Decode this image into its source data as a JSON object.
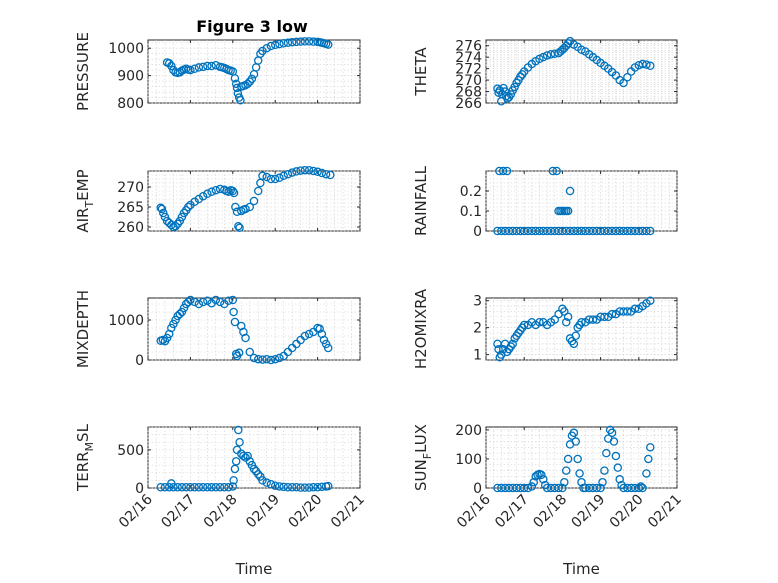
{
  "figure": {
    "title": "Figure 3 low",
    "marker_color": "#0072BD"
  },
  "chart_data": [
    {
      "id": "pressure",
      "type": "scatter",
      "title": "Figure 3 low",
      "ylabel": "PRESSURE",
      "ylabel_sub": "",
      "ylabel_tail": "",
      "xlabel": "",
      "xlim": [
        16,
        21
      ],
      "ylim": [
        800,
        1030
      ],
      "yticks": [
        800,
        900,
        1000
      ],
      "ytick_labels": [
        "800",
        "900",
        "1000"
      ],
      "xticks": [
        16,
        17,
        18,
        19,
        20,
        21
      ],
      "xtick_labels": [
        "",
        "",
        "",
        "",
        "",
        ""
      ],
      "x": [
        16.45,
        16.5,
        16.55,
        16.6,
        16.65,
        16.7,
        16.75,
        16.8,
        16.85,
        16.9,
        16.95,
        17.0,
        17.1,
        17.2,
        17.3,
        17.4,
        17.5,
        17.6,
        17.7,
        17.75,
        17.8,
        17.85,
        17.9,
        17.95,
        18.0,
        18.05,
        18.08,
        18.1,
        18.12,
        18.15,
        18.18,
        18.2,
        18.25,
        18.3,
        18.35,
        18.4,
        18.45,
        18.5,
        18.55,
        18.6,
        18.65,
        18.7,
        18.8,
        18.9,
        19.0,
        19.1,
        19.2,
        19.3,
        19.4,
        19.5,
        19.6,
        19.7,
        19.8,
        19.9,
        20.0,
        20.05,
        20.1,
        20.15,
        20.2,
        20.25
      ],
      "y": [
        948,
        945,
        935,
        920,
        912,
        910,
        912,
        918,
        922,
        925,
        922,
        920,
        925,
        930,
        932,
        935,
        935,
        938,
        932,
        930,
        928,
        924,
        920,
        918,
        915,
        890,
        870,
        855,
        835,
        820,
        810,
        860,
        862,
        865,
        870,
        878,
        888,
        905,
        930,
        955,
        980,
        990,
        1000,
        1008,
        1012,
        1015,
        1018,
        1020,
        1022,
        1023,
        1024,
        1025,
        1025,
        1024,
        1023,
        1022,
        1020,
        1018,
        1016,
        1013
      ]
    },
    {
      "id": "theta",
      "type": "scatter",
      "title": "",
      "ylabel": "THETA",
      "ylabel_sub": "",
      "ylabel_tail": "",
      "xlabel": "",
      "xlim": [
        16,
        21
      ],
      "ylim": [
        266,
        277
      ],
      "yticks": [
        266,
        268,
        270,
        272,
        274,
        276
      ],
      "ytick_labels": [
        "266",
        "268",
        "270",
        "272",
        "274",
        "276"
      ],
      "xticks": [
        16,
        17,
        18,
        19,
        20,
        21
      ],
      "xtick_labels": [
        "",
        "",
        "",
        "",
        "",
        ""
      ],
      "x": [
        16.3,
        16.33,
        16.36,
        16.4,
        16.43,
        16.46,
        16.5,
        16.53,
        16.56,
        16.6,
        16.65,
        16.7,
        16.75,
        16.8,
        16.85,
        16.9,
        16.95,
        17.0,
        17.1,
        17.2,
        17.3,
        17.4,
        17.5,
        17.6,
        17.7,
        17.8,
        17.9,
        17.95,
        18.0,
        18.05,
        18.1,
        18.15,
        18.2,
        18.3,
        18.4,
        18.5,
        18.6,
        18.7,
        18.8,
        18.9,
        19.0,
        19.1,
        19.2,
        19.3,
        19.4,
        19.5,
        19.6,
        19.7,
        19.8,
        19.9,
        20.0,
        20.1,
        20.2,
        20.3
      ],
      "y": [
        268.5,
        267.8,
        268.2,
        266.3,
        267.5,
        268.6,
        268.0,
        267.2,
        266.8,
        267.0,
        267.5,
        268.2,
        268.8,
        269.5,
        270.0,
        270.6,
        271.0,
        271.5,
        272.2,
        272.8,
        273.3,
        273.7,
        274.0,
        274.3,
        274.5,
        274.6,
        274.7,
        275.0,
        275.3,
        275.6,
        276.0,
        276.4,
        276.8,
        276.2,
        275.8,
        275.3,
        275.0,
        274.5,
        274.0,
        273.5,
        273.0,
        272.5,
        272.0,
        271.4,
        270.8,
        270.0,
        269.5,
        270.5,
        271.5,
        272.2,
        272.6,
        272.8,
        272.7,
        272.5
      ]
    },
    {
      "id": "air_temp",
      "type": "scatter",
      "title": "",
      "ylabel": "AIR",
      "ylabel_sub": "T",
      "ylabel_tail": "EMP",
      "xlabel": "",
      "xlim": [
        16,
        21
      ],
      "ylim": [
        259,
        274
      ],
      "yticks": [
        260,
        265,
        270
      ],
      "ytick_labels": [
        "260",
        "265",
        "270"
      ],
      "xticks": [
        16,
        17,
        18,
        19,
        20,
        21
      ],
      "xtick_labels": [
        "",
        "",
        "",
        "",
        "",
        ""
      ],
      "x": [
        16.3,
        16.33,
        16.36,
        16.4,
        16.45,
        16.5,
        16.55,
        16.6,
        16.65,
        16.7,
        16.75,
        16.8,
        16.85,
        16.9,
        16.95,
        17.0,
        17.1,
        17.2,
        17.3,
        17.4,
        17.5,
        17.6,
        17.7,
        17.8,
        17.85,
        17.9,
        17.95,
        18.0,
        18.03,
        18.06,
        18.1,
        18.13,
        18.16,
        18.2,
        18.25,
        18.3,
        18.4,
        18.5,
        18.6,
        18.65,
        18.7,
        18.8,
        18.9,
        19.0,
        19.1,
        19.2,
        19.3,
        19.4,
        19.5,
        19.6,
        19.7,
        19.8,
        19.9,
        20.0,
        20.1,
        20.2,
        20.3
      ],
      "y": [
        264.8,
        264.5,
        263.5,
        262.5,
        261.5,
        261.0,
        260.5,
        260.0,
        260.2,
        260.8,
        261.5,
        262.5,
        263.5,
        264.2,
        265.0,
        265.5,
        266.3,
        267.0,
        267.7,
        268.3,
        268.8,
        269.2,
        269.5,
        269.3,
        269.0,
        268.8,
        269.2,
        269.0,
        268.5,
        265.0,
        263.8,
        260.2,
        259.8,
        264.0,
        264.3,
        264.5,
        265.0,
        266.5,
        269.0,
        271.0,
        272.8,
        272.5,
        272.0,
        272.0,
        272.3,
        272.8,
        273.2,
        273.6,
        273.9,
        274.1,
        274.2,
        274.2,
        274.0,
        273.8,
        273.5,
        273.2,
        273.0
      ]
    },
    {
      "id": "rainfall",
      "type": "scatter",
      "title": "",
      "ylabel": "RAINFALL",
      "ylabel_sub": "",
      "ylabel_tail": "",
      "xlabel": "",
      "xlim": [
        16,
        21
      ],
      "ylim": [
        0,
        0.3
      ],
      "yticks": [
        0,
        0.1,
        0.2
      ],
      "ytick_labels": [
        "0",
        "0.1",
        "0.2"
      ],
      "xticks": [
        16,
        17,
        18,
        19,
        20,
        21
      ],
      "xtick_labels": [
        "",
        "",
        "",
        "",
        "",
        ""
      ],
      "x": [
        16.3,
        16.4,
        16.5,
        16.6,
        16.7,
        16.8,
        16.9,
        17.0,
        17.1,
        17.2,
        17.3,
        17.4,
        17.5,
        17.6,
        17.7,
        17.8,
        17.9,
        18.0,
        18.1,
        18.2,
        18.3,
        18.4,
        18.5,
        18.6,
        18.7,
        18.8,
        18.9,
        19.0,
        19.1,
        19.2,
        19.3,
        19.4,
        19.5,
        19.6,
        19.7,
        19.8,
        19.9,
        20.0,
        20.1,
        20.2,
        20.3,
        16.35,
        16.45,
        16.55,
        17.85,
        17.9,
        17.95,
        18.0,
        18.05,
        18.1,
        18.2,
        17.75,
        18.15
      ],
      "y": [
        0,
        0,
        0,
        0,
        0,
        0,
        0,
        0,
        0,
        0,
        0,
        0,
        0,
        0,
        0,
        0,
        0,
        0,
        0,
        0,
        0,
        0,
        0,
        0,
        0,
        0,
        0,
        0,
        0,
        0,
        0,
        0,
        0,
        0,
        0,
        0,
        0,
        0,
        0,
        0,
        0,
        0.3,
        0.3,
        0.3,
        0.3,
        0.1,
        0.1,
        0.1,
        0.1,
        0.1,
        0.2,
        0.3,
        0.1
      ]
    },
    {
      "id": "mixdepth",
      "type": "scatter",
      "title": "",
      "ylabel": "MIXDEPTH",
      "ylabel_sub": "",
      "ylabel_tail": "",
      "xlabel": "",
      "xlim": [
        16,
        21
      ],
      "ylim": [
        0,
        1550
      ],
      "yticks": [
        0,
        1000
      ],
      "ytick_labels": [
        "0",
        "1000"
      ],
      "xticks": [
        16,
        17,
        18,
        19,
        20,
        21
      ],
      "xtick_labels": [
        "",
        "",
        "",
        "",
        "",
        ""
      ],
      "x": [
        16.3,
        16.35,
        16.4,
        16.45,
        16.5,
        16.55,
        16.6,
        16.65,
        16.7,
        16.75,
        16.8,
        16.85,
        16.9,
        16.95,
        17.0,
        17.1,
        17.2,
        17.3,
        17.4,
        17.5,
        17.6,
        17.7,
        17.8,
        17.9,
        18.0,
        18.02,
        18.05,
        18.08,
        18.1,
        18.15,
        18.2,
        18.25,
        18.3,
        18.4,
        18.5,
        18.6,
        18.7,
        18.8,
        18.9,
        19.0,
        19.1,
        19.2,
        19.3,
        19.4,
        19.5,
        19.6,
        19.7,
        19.8,
        19.9,
        20.0,
        20.05,
        20.1,
        20.15,
        20.2,
        20.25
      ],
      "y": [
        480,
        500,
        470,
        550,
        650,
        800,
        900,
        1000,
        1100,
        1150,
        1200,
        1300,
        1400,
        1450,
        1500,
        1450,
        1400,
        1450,
        1480,
        1420,
        1500,
        1450,
        1400,
        1480,
        1500,
        1200,
        950,
        150,
        100,
        180,
        850,
        700,
        550,
        200,
        50,
        20,
        10,
        20,
        0,
        20,
        50,
        100,
        200,
        300,
        400,
        500,
        600,
        650,
        700,
        800,
        780,
        650,
        500,
        400,
        300
      ]
    },
    {
      "id": "h2omixra",
      "type": "scatter",
      "title": "",
      "ylabel": "H2OMIXRA",
      "ylabel_sub": "",
      "ylabel_tail": "",
      "xlabel": "",
      "xlim": [
        16,
        21
      ],
      "ylim": [
        0.8,
        3.1
      ],
      "yticks": [
        1,
        2,
        3
      ],
      "ytick_labels": [
        "1",
        "2",
        "3"
      ],
      "xticks": [
        16,
        17,
        18,
        19,
        20,
        21
      ],
      "xtick_labels": [
        "",
        "",
        "",
        "",
        "",
        ""
      ],
      "x": [
        16.3,
        16.33,
        16.36,
        16.4,
        16.45,
        16.5,
        16.55,
        16.6,
        16.65,
        16.7,
        16.75,
        16.8,
        16.85,
        16.9,
        16.95,
        17.0,
        17.1,
        17.2,
        17.3,
        17.4,
        17.5,
        17.6,
        17.7,
        17.8,
        17.9,
        18.0,
        18.05,
        18.1,
        18.15,
        18.2,
        18.25,
        18.3,
        18.35,
        18.4,
        18.45,
        18.5,
        18.6,
        18.7,
        18.8,
        18.9,
        19.0,
        19.1,
        19.2,
        19.3,
        19.4,
        19.5,
        19.6,
        19.7,
        19.8,
        19.9,
        20.0,
        20.1,
        20.2,
        20.3
      ],
      "y": [
        1.4,
        1.2,
        0.9,
        1.0,
        1.2,
        1.4,
        1.1,
        1.2,
        1.3,
        1.4,
        1.6,
        1.7,
        1.8,
        1.9,
        2.0,
        2.1,
        2.1,
        2.2,
        2.1,
        2.2,
        2.2,
        2.1,
        2.2,
        2.3,
        2.5,
        2.7,
        2.6,
        2.2,
        2.4,
        1.6,
        1.5,
        1.4,
        1.7,
        2.0,
        2.1,
        2.2,
        2.2,
        2.3,
        2.3,
        2.3,
        2.4,
        2.4,
        2.4,
        2.5,
        2.5,
        2.6,
        2.6,
        2.6,
        2.6,
        2.7,
        2.7,
        2.8,
        2.9,
        3.0
      ]
    },
    {
      "id": "terr_msl",
      "type": "scatter",
      "title": "",
      "ylabel": "TERR",
      "ylabel_sub": "M",
      "ylabel_tail": "SL",
      "xlabel": "Time",
      "xlim": [
        16,
        21
      ],
      "ylim": [
        0,
        800
      ],
      "yticks": [
        0,
        500
      ],
      "ytick_labels": [
        "0",
        "500"
      ],
      "xticks": [
        16,
        17,
        18,
        19,
        20,
        21
      ],
      "xtick_labels": [
        "02/16",
        "02/17",
        "02/18",
        "02/19",
        "02/20",
        "02/21"
      ],
      "x": [
        16.3,
        16.4,
        16.5,
        16.55,
        16.6,
        16.7,
        16.8,
        16.9,
        17.0,
        17.1,
        17.2,
        17.3,
        17.4,
        17.5,
        17.6,
        17.7,
        17.8,
        17.9,
        18.0,
        18.02,
        18.05,
        18.08,
        18.1,
        18.13,
        18.16,
        18.2,
        18.25,
        18.3,
        18.35,
        18.4,
        18.45,
        18.5,
        18.55,
        18.6,
        18.65,
        18.7,
        18.8,
        18.9,
        19.0,
        19.1,
        19.2,
        19.3,
        19.4,
        19.5,
        19.6,
        19.7,
        19.8,
        19.9,
        20.0,
        20.1,
        20.2,
        20.25
      ],
      "y": [
        10,
        10,
        10,
        60,
        10,
        10,
        10,
        10,
        10,
        10,
        10,
        10,
        10,
        10,
        10,
        10,
        10,
        10,
        20,
        100,
        250,
        350,
        500,
        760,
        600,
        450,
        420,
        400,
        420,
        350,
        300,
        250,
        220,
        180,
        150,
        100,
        70,
        50,
        30,
        20,
        15,
        10,
        10,
        10,
        5,
        5,
        5,
        10,
        10,
        15,
        20,
        25
      ]
    },
    {
      "id": "sun_flux",
      "type": "scatter",
      "title": "",
      "ylabel": "SUN",
      "ylabel_sub": "F",
      "ylabel_tail": "LUX",
      "xlabel": "Time",
      "xlim": [
        16,
        21
      ],
      "ylim": [
        0,
        210
      ],
      "yticks": [
        0,
        100,
        200
      ],
      "ytick_labels": [
        "0",
        "100",
        "200"
      ],
      "xticks": [
        16,
        17,
        18,
        19,
        20,
        21
      ],
      "xtick_labels": [
        "02/16",
        "02/17",
        "02/18",
        "02/19",
        "02/20",
        "02/21"
      ],
      "x": [
        16.3,
        16.4,
        16.5,
        16.6,
        16.7,
        16.8,
        16.9,
        17.0,
        17.1,
        17.2,
        17.25,
        17.3,
        17.35,
        17.4,
        17.45,
        17.5,
        17.55,
        17.6,
        17.7,
        17.8,
        17.9,
        18.0,
        18.05,
        18.1,
        18.15,
        18.2,
        18.25,
        18.3,
        18.35,
        18.4,
        18.45,
        18.5,
        18.55,
        18.6,
        18.7,
        18.8,
        18.9,
        19.0,
        19.05,
        19.1,
        19.15,
        19.2,
        19.25,
        19.3,
        19.35,
        19.4,
        19.45,
        19.5,
        19.55,
        19.6,
        19.7,
        19.8,
        19.9,
        20.0,
        20.05,
        20.1,
        20.2,
        20.25,
        20.3
      ],
      "y": [
        0,
        0,
        0,
        0,
        0,
        0,
        0,
        0,
        0,
        5,
        20,
        40,
        45,
        48,
        45,
        30,
        10,
        0,
        0,
        0,
        0,
        0,
        20,
        60,
        100,
        150,
        180,
        190,
        160,
        100,
        50,
        20,
        0,
        0,
        0,
        0,
        0,
        0,
        20,
        60,
        120,
        170,
        200,
        190,
        160,
        110,
        70,
        30,
        10,
        0,
        0,
        0,
        0,
        0,
        5,
        0,
        50,
        100,
        140
      ]
    }
  ]
}
